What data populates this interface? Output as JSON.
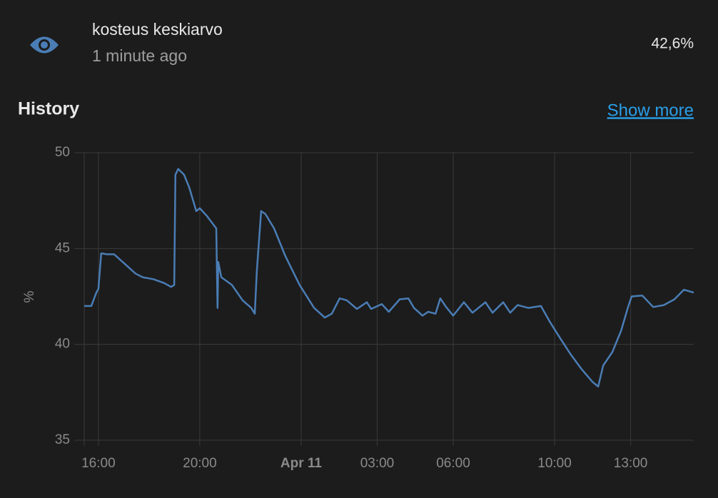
{
  "header": {
    "title": "kosteus keskiarvo",
    "subtitle": "1 minute ago",
    "state": "42,6%"
  },
  "history": {
    "title": "History",
    "link": "Show more"
  },
  "chart_data": {
    "type": "line",
    "y_label": "%",
    "color": "#4a7db5",
    "grid": true,
    "x": [
      15.44,
      15.72,
      15.92,
      16.0,
      16.11,
      16.34,
      16.62,
      17.04,
      17.46,
      17.75,
      18.17,
      18.59,
      18.87,
      18.99,
      19.04,
      19.15,
      19.38,
      19.58,
      19.86,
      20.0,
      20.28,
      20.65,
      20.7,
      20.73,
      20.85,
      21.27,
      21.69,
      22.03,
      22.17,
      22.25,
      22.42,
      22.59,
      22.93,
      23.38,
      23.94,
      24.51,
      24.93,
      25.21,
      25.52,
      25.8,
      26.2,
      26.59,
      26.76,
      27.18,
      27.46,
      27.89,
      28.23,
      28.45,
      28.79,
      29.01,
      29.3,
      29.49,
      29.72,
      30.0,
      30.42,
      30.76,
      31.27,
      31.55,
      31.97,
      32.25,
      32.54,
      32.96,
      33.46,
      33.8,
      34.23,
      34.65,
      35.07,
      35.49,
      35.72,
      35.92,
      36.28,
      36.62,
      36.9,
      37.04,
      37.46,
      37.89,
      38.31,
      38.73,
      39.1,
      39.49
    ],
    "values": [
      42.0,
      42.0,
      42.7,
      42.9,
      44.75,
      44.7,
      44.7,
      44.2,
      43.7,
      43.5,
      43.4,
      43.2,
      43.0,
      43.1,
      48.85,
      49.15,
      48.85,
      48.2,
      46.95,
      47.1,
      46.7,
      46.05,
      41.9,
      44.3,
      43.5,
      43.1,
      42.3,
      41.9,
      41.6,
      43.8,
      46.95,
      46.8,
      46.05,
      44.6,
      43.1,
      41.9,
      41.4,
      41.6,
      42.4,
      42.3,
      41.85,
      42.2,
      41.85,
      42.1,
      41.7,
      42.35,
      42.4,
      41.9,
      41.5,
      41.7,
      41.6,
      42.4,
      41.95,
      41.5,
      42.2,
      41.65,
      42.2,
      41.65,
      42.2,
      41.65,
      42.05,
      41.9,
      42.0,
      41.2,
      40.3,
      39.45,
      38.7,
      38.05,
      37.8,
      38.9,
      39.6,
      40.7,
      41.95,
      42.5,
      42.55,
      41.95,
      42.05,
      42.35,
      42.85,
      42.7
    ],
    "xlim": [
      15.44,
      39.49
    ],
    "xticks": [
      {
        "value": 16,
        "label": "16:00"
      },
      {
        "value": 20,
        "label": "20:00"
      },
      {
        "value": 24,
        "label": "Apr 11"
      },
      {
        "value": 27,
        "label": "03:00"
      },
      {
        "value": 30,
        "label": "06:00"
      },
      {
        "value": 34,
        "label": "10:00"
      },
      {
        "value": 37,
        "label": "13:00"
      }
    ],
    "ylim": [
      35,
      50
    ],
    "yticks": [
      35,
      40,
      45,
      50
    ]
  }
}
